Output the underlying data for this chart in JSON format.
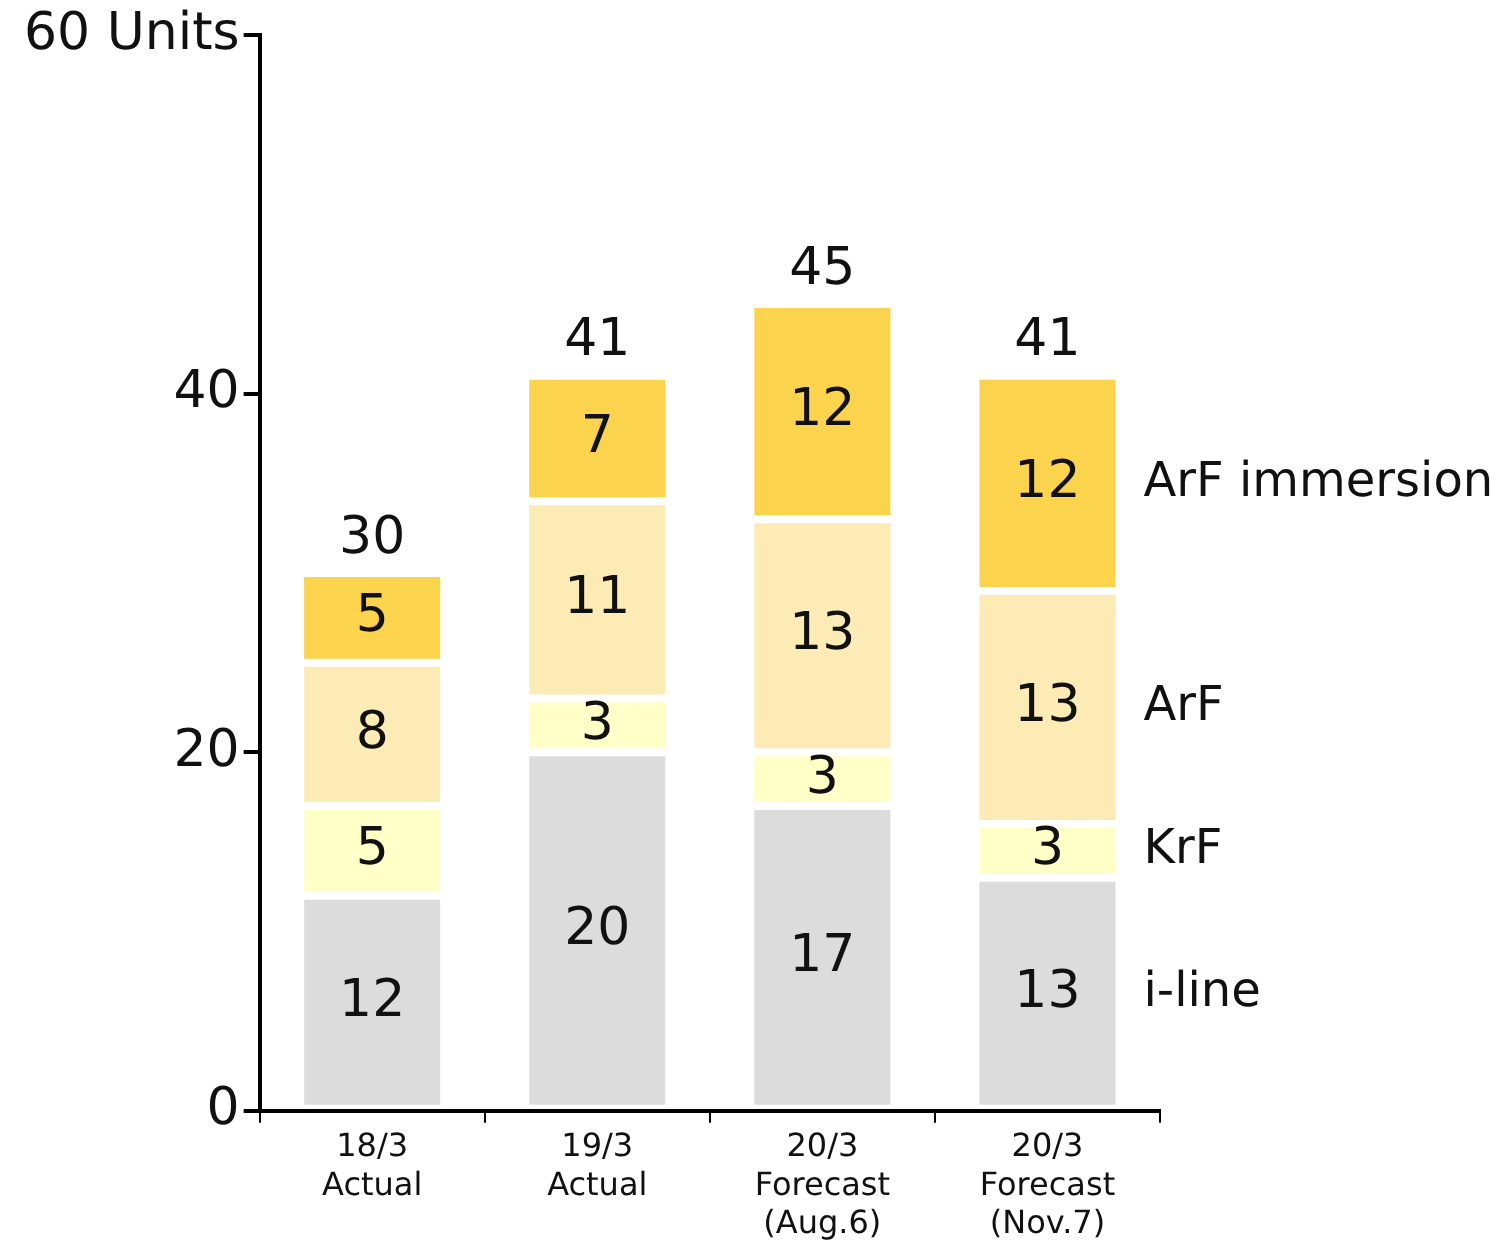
{
  "chart_data": {
    "type": "bar",
    "stacked": true,
    "categories": [
      "18/3\nActual",
      "19/3\nActual",
      "20/3\nForecast\n(Aug.6)",
      "20/3\nForecast\n(Nov.7)"
    ],
    "series": [
      {
        "name": "i-line",
        "color": "#dcdcdc",
        "values": [
          12,
          20,
          17,
          13
        ]
      },
      {
        "name": "KrF",
        "color": "#ffffc8",
        "values": [
          5,
          3,
          3,
          3
        ]
      },
      {
        "name": "ArF",
        "color": "#fdebb5",
        "values": [
          8,
          11,
          13,
          13
        ]
      },
      {
        "name": "ArF immersion",
        "color": "#fcd34c",
        "values": [
          5,
          7,
          12,
          12
        ]
      }
    ],
    "ylim": [
      0,
      60
    ],
    "yticks": [
      0,
      20,
      40,
      {
        "value": 60,
        "label": "60 Units"
      }
    ],
    "grid": false,
    "legend": false,
    "data_labels": true,
    "totals": [
      "30",
      "41",
      "45",
      "41"
    ]
  }
}
